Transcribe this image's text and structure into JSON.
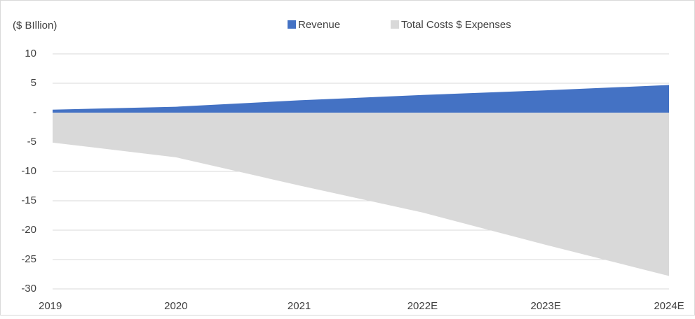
{
  "chart_data": {
    "type": "area",
    "title": "($ BIllion)",
    "categories": [
      "2019",
      "2020",
      "2021",
      "2022E",
      "2023E",
      "2024E"
    ],
    "series": [
      {
        "name": "Revenue",
        "color": "#4472c4",
        "values": [
          0.5,
          1.0,
          2.1,
          3.0,
          3.8,
          4.7
        ]
      },
      {
        "name": "Total Costs $ Expenses",
        "color": "#d9d9d9",
        "values": [
          -5.1,
          -7.6,
          -12.4,
          -17.0,
          -22.5,
          -27.8
        ]
      }
    ],
    "ylim": [
      -30,
      10
    ],
    "yticks": [
      -30,
      -25,
      -20,
      -15,
      -10,
      -5,
      {
        "value": 0,
        "label": "-"
      },
      5,
      10
    ],
    "grid": true
  }
}
